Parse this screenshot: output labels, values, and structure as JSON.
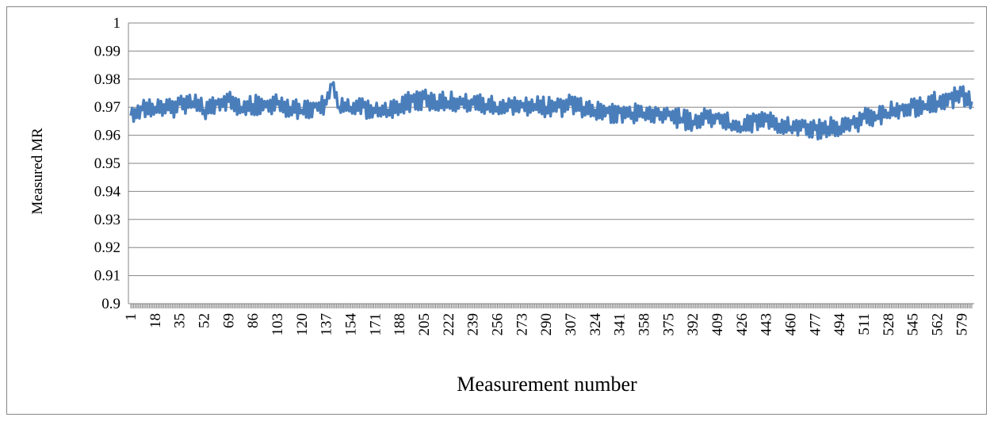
{
  "chart_data": {
    "type": "line",
    "title": "",
    "xlabel": "Measurement number",
    "ylabel": "Measured MR",
    "ylim": [
      0.9,
      1
    ],
    "y_ticks": [
      "0.9",
      "0.91",
      "0.92",
      "0.93",
      "0.94",
      "0.95",
      "0.96",
      "0.97",
      "0.98",
      "0.99",
      "1"
    ],
    "x_tick_labels": [
      "1",
      "18",
      "35",
      "52",
      "69",
      "86",
      "103",
      "120",
      "137",
      "154",
      "171",
      "188",
      "205",
      "222",
      "239",
      "256",
      "273",
      "290",
      "307",
      "324",
      "341",
      "358",
      "375",
      "392",
      "409",
      "426",
      "443",
      "460",
      "477",
      "494",
      "511",
      "528",
      "545",
      "562",
      "579"
    ],
    "x_range": [
      1,
      586
    ],
    "grid": "horizontal",
    "legend": "none",
    "series_color": "#4a7ebb",
    "series": [
      {
        "x": [
          1,
          9,
          18,
          27,
          35,
          44,
          52,
          61,
          69,
          78,
          86,
          95,
          103,
          112,
          120,
          129,
          137,
          141,
          146,
          154,
          163,
          171,
          180,
          188,
          197,
          205,
          214,
          222,
          231,
          239,
          248,
          256,
          265,
          273,
          282,
          290,
          299,
          307,
          316,
          324,
          333,
          341,
          350,
          358,
          367,
          375,
          384,
          392,
          401,
          409,
          418,
          426,
          435,
          443,
          452,
          460,
          469,
          477,
          486,
          494,
          503,
          511,
          520,
          528,
          537,
          545,
          554,
          562,
          571,
          579,
          586
        ],
        "values": [
          0.967,
          0.969,
          0.97,
          0.969,
          0.971,
          0.972,
          0.969,
          0.971,
          0.972,
          0.97,
          0.971,
          0.97,
          0.971,
          0.97,
          0.969,
          0.97,
          0.971,
          0.978,
          0.97,
          0.97,
          0.97,
          0.968,
          0.969,
          0.971,
          0.972,
          0.973,
          0.972,
          0.972,
          0.971,
          0.971,
          0.971,
          0.97,
          0.97,
          0.97,
          0.971,
          0.97,
          0.97,
          0.971,
          0.97,
          0.969,
          0.968,
          0.968,
          0.968,
          0.968,
          0.967,
          0.967,
          0.966,
          0.965,
          0.966,
          0.966,
          0.964,
          0.963,
          0.965,
          0.965,
          0.964,
          0.963,
          0.963,
          0.962,
          0.963,
          0.963,
          0.964,
          0.966,
          0.967,
          0.968,
          0.969,
          0.97,
          0.971,
          0.972,
          0.973,
          0.974,
          0.972
        ]
      }
    ]
  }
}
